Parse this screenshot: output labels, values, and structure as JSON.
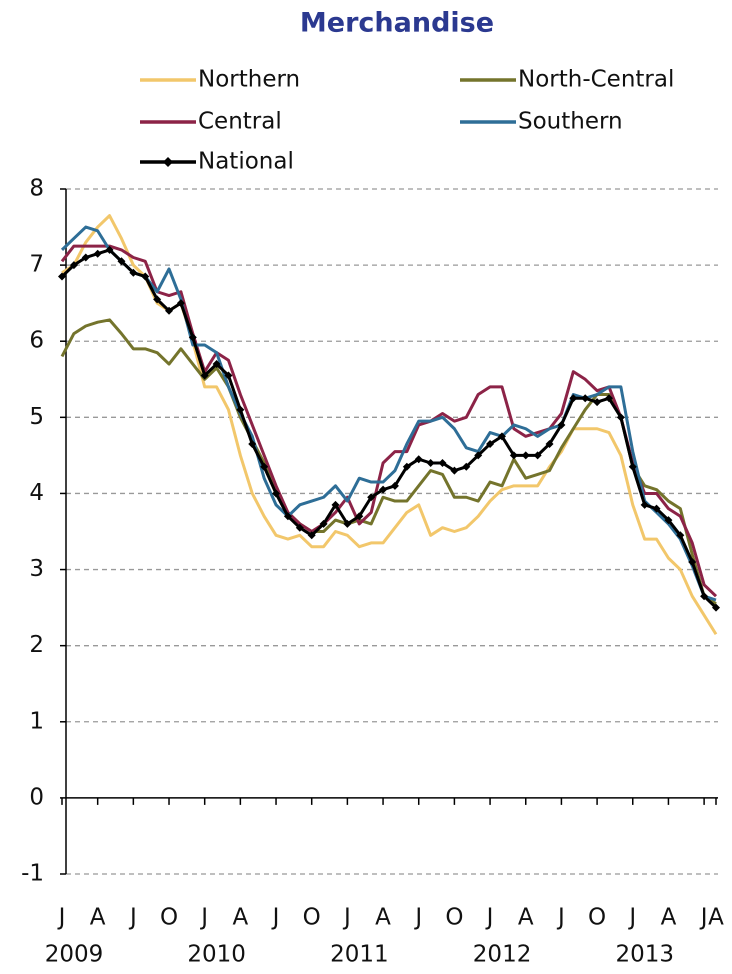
{
  "chart_data": {
    "type": "line",
    "title": "Merchandise",
    "categories": [
      "J",
      null,
      null,
      "A",
      null,
      null,
      "J",
      null,
      null,
      "O",
      null,
      null,
      "J",
      null,
      null,
      "A",
      null,
      null,
      "J",
      null,
      null,
      "O",
      null,
      null,
      "J",
      null,
      null,
      "A",
      null,
      null,
      "J",
      null,
      null,
      "O",
      null,
      null,
      "J",
      null,
      null,
      "A",
      null,
      null,
      "J",
      null,
      null,
      "O",
      null,
      null,
      "J",
      null,
      null,
      "A",
      null,
      null,
      "J",
      "A"
    ],
    "years": [
      "2009",
      "2010",
      "2011",
      "2012",
      "2013"
    ],
    "ylim": [
      -1,
      8
    ],
    "yticks": [
      -1,
      0,
      1,
      2,
      3,
      4,
      5,
      6,
      7,
      8
    ],
    "grid": true,
    "series": [
      {
        "name": "Northern",
        "color": "#f2c76b",
        "values": [
          6.9,
          7.0,
          7.3,
          7.5,
          7.65,
          7.35,
          7.0,
          6.85,
          6.5,
          6.4,
          6.5,
          6.0,
          5.4,
          5.4,
          5.1,
          4.5,
          4.0,
          3.7,
          3.45,
          3.4,
          3.45,
          3.3,
          3.3,
          3.5,
          3.45,
          3.3,
          3.35,
          3.35,
          3.55,
          3.75,
          3.85,
          3.45,
          3.55,
          3.5,
          3.55,
          3.7,
          3.9,
          4.05,
          4.1,
          4.1,
          4.1,
          4.35,
          4.55,
          4.85,
          4.85,
          4.85,
          4.8,
          4.5,
          3.85,
          3.4,
          3.4,
          3.15,
          3.0,
          2.65,
          2.4,
          2.15
        ]
      },
      {
        "name": "North-Central",
        "color": "#74742c",
        "values": [
          5.8,
          6.1,
          6.2,
          6.25,
          6.28,
          6.1,
          5.9,
          5.9,
          5.85,
          5.7,
          5.9,
          5.7,
          5.5,
          5.65,
          5.4,
          5.0,
          4.7,
          4.4,
          4.0,
          3.75,
          3.6,
          3.5,
          3.5,
          3.65,
          3.6,
          3.65,
          3.6,
          3.95,
          3.9,
          3.9,
          4.1,
          4.3,
          4.25,
          3.95,
          3.95,
          3.9,
          4.15,
          4.1,
          4.45,
          4.2,
          4.25,
          4.3,
          4.6,
          4.85,
          5.1,
          5.3,
          5.3,
          5.0,
          4.35,
          4.1,
          4.05,
          3.9,
          3.8,
          3.2,
          2.65,
          2.55
        ]
      },
      {
        "name": "Central",
        "color": "#8c2347",
        "values": [
          7.05,
          7.25,
          7.25,
          7.25,
          7.25,
          7.2,
          7.1,
          7.05,
          6.65,
          6.6,
          6.65,
          6.1,
          5.6,
          5.85,
          5.75,
          5.3,
          4.9,
          4.5,
          4.1,
          3.75,
          3.6,
          3.5,
          3.6,
          3.75,
          3.95,
          3.6,
          3.75,
          4.4,
          4.55,
          4.55,
          4.9,
          4.95,
          5.05,
          4.95,
          5.0,
          5.3,
          5.4,
          5.4,
          4.85,
          4.75,
          4.8,
          4.85,
          5.05,
          5.6,
          5.5,
          5.35,
          5.4,
          5.0,
          4.4,
          4.0,
          4.0,
          3.8,
          3.7,
          3.35,
          2.8,
          2.65
        ]
      },
      {
        "name": "Southern",
        "color": "#2e6e97",
        "values": [
          7.2,
          7.35,
          7.5,
          7.45,
          7.2,
          7.05,
          6.9,
          6.85,
          6.65,
          6.95,
          6.55,
          5.95,
          5.95,
          5.85,
          5.4,
          5.05,
          4.75,
          4.2,
          3.85,
          3.7,
          3.85,
          3.9,
          3.95,
          4.1,
          3.9,
          4.2,
          4.15,
          4.15,
          4.3,
          4.65,
          4.95,
          4.95,
          5.0,
          4.85,
          4.6,
          4.55,
          4.8,
          4.75,
          4.9,
          4.85,
          4.75,
          4.85,
          4.9,
          5.3,
          5.25,
          5.3,
          5.4,
          5.4,
          4.55,
          3.9,
          3.75,
          3.6,
          3.4,
          3.05,
          2.65,
          2.6
        ]
      },
      {
        "name": "National",
        "color": "#000000",
        "marker": "diamond",
        "values": [
          6.85,
          7.0,
          7.1,
          7.15,
          7.2,
          7.05,
          6.9,
          6.85,
          6.55,
          6.4,
          6.5,
          6.05,
          5.55,
          5.7,
          5.55,
          5.1,
          4.65,
          4.35,
          4.0,
          3.7,
          3.55,
          3.45,
          3.6,
          3.85,
          3.6,
          3.7,
          3.95,
          4.05,
          4.1,
          4.35,
          4.45,
          4.4,
          4.4,
          4.3,
          4.35,
          4.5,
          4.65,
          4.75,
          4.5,
          4.5,
          4.5,
          4.65,
          4.9,
          5.25,
          5.25,
          5.2,
          5.25,
          5.0,
          4.35,
          3.85,
          3.8,
          3.65,
          3.45,
          3.1,
          2.65,
          2.5
        ]
      }
    ]
  }
}
